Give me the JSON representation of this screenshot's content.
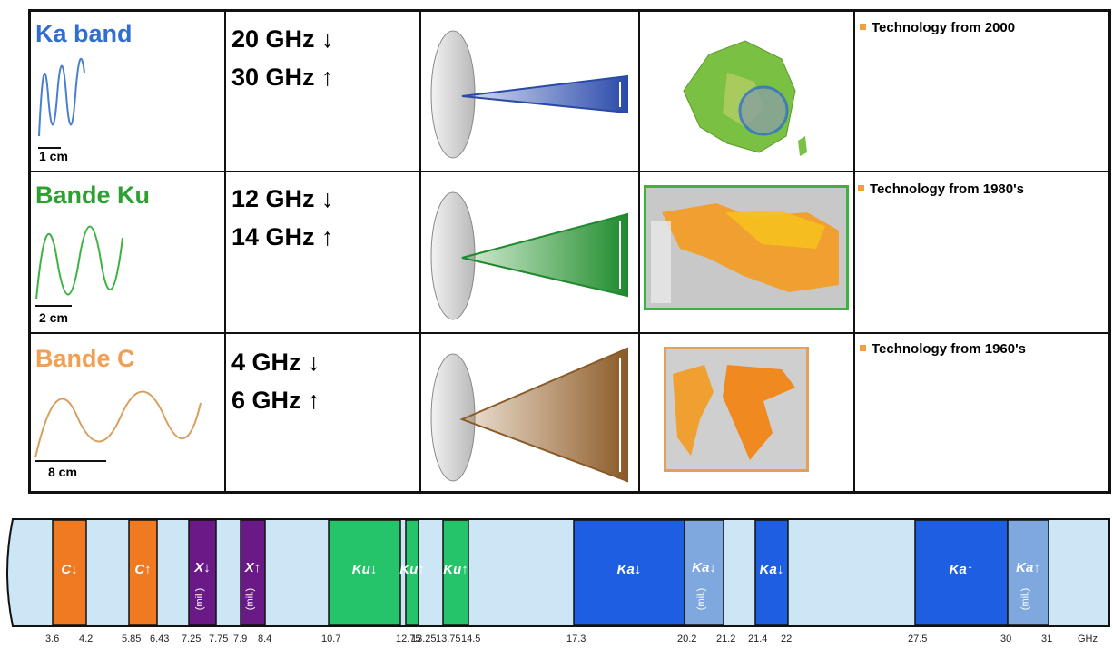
{
  "rows": [
    {
      "band_title": "Ka band",
      "title_color": "#2f6fd0",
      "wave_color": "#4a7fcf",
      "scale_label": "1 cm",
      "freq_down": "20 GHz ↓",
      "freq_up": "30 GHz ↑",
      "beam_color": "#3a58b8",
      "coverage": "France map",
      "technology": "Technology from 2000"
    },
    {
      "band_title": "Bande Ku",
      "title_color": "#2ca030",
      "wave_color": "#3cb340",
      "scale_label": "2 cm",
      "freq_down": "12 GHz ↓",
      "freq_up": "14 GHz ↑",
      "beam_color": "#2e9a2e",
      "coverage": "Europe map",
      "technology": "Technology from 1980's"
    },
    {
      "band_title": "Bande C",
      "title_color": "#f0a050",
      "wave_color": "#d8a060",
      "scale_label": "8 cm",
      "freq_down": "4 GHz ↓",
      "freq_up": "6 GHz ↑",
      "beam_color": "#a06a30",
      "coverage": "World map",
      "technology": "Technology from 1960's"
    }
  ],
  "spectrum": {
    "unit": "GHz",
    "ticks": [
      "3.6",
      "4.2",
      "5.85",
      "6.43",
      "7.25",
      "7.75",
      "7.9",
      "8.4",
      "10.7",
      "12.75",
      "13.25",
      "13.75",
      "14.5",
      "17.3",
      "20.2",
      "21.2",
      "21.4",
      "22",
      "27.5",
      "30",
      "31"
    ],
    "bands": [
      {
        "label": "C↓",
        "from": 3.6,
        "to": 4.2,
        "type": "C"
      },
      {
        "label": "C↑",
        "from": 5.85,
        "to": 6.43,
        "type": "C"
      },
      {
        "label": "X↓",
        "sub": "(mil.)",
        "from": 7.25,
        "to": 7.75,
        "type": "X"
      },
      {
        "label": "X↑",
        "sub": "(mil.)",
        "from": 7.9,
        "to": 8.4,
        "type": "X"
      },
      {
        "label": "Ku↓",
        "from": 10.7,
        "to": 12.75,
        "type": "Ku"
      },
      {
        "label": "Ku↑",
        "from": 12.75,
        "to": 13.25,
        "type": "Ku"
      },
      {
        "label": "Ku↑",
        "from": 13.75,
        "to": 14.5,
        "type": "Ku"
      },
      {
        "label": "Ka↓",
        "from": 17.3,
        "to": 20.2,
        "type": "Ka"
      },
      {
        "label": "Ka↓",
        "sub": "(mil.)",
        "from": 20.2,
        "to": 21.2,
        "type": "KaMil"
      },
      {
        "label": "Ka↓",
        "from": 21.4,
        "to": 22,
        "type": "Ka"
      },
      {
        "label": "Ka↑",
        "from": 27.5,
        "to": 30,
        "type": "Ka"
      },
      {
        "label": "Ka↑",
        "sub": "(mil.)",
        "from": 30,
        "to": 31,
        "type": "KaMil"
      }
    ],
    "colors": {
      "background": "#cde6f6",
      "C": "#ef7a22",
      "X": "#6a1a86",
      "Ku": "#26c46a",
      "Ka": "#1d5fe0",
      "KaMil": "#7ea8de"
    }
  }
}
